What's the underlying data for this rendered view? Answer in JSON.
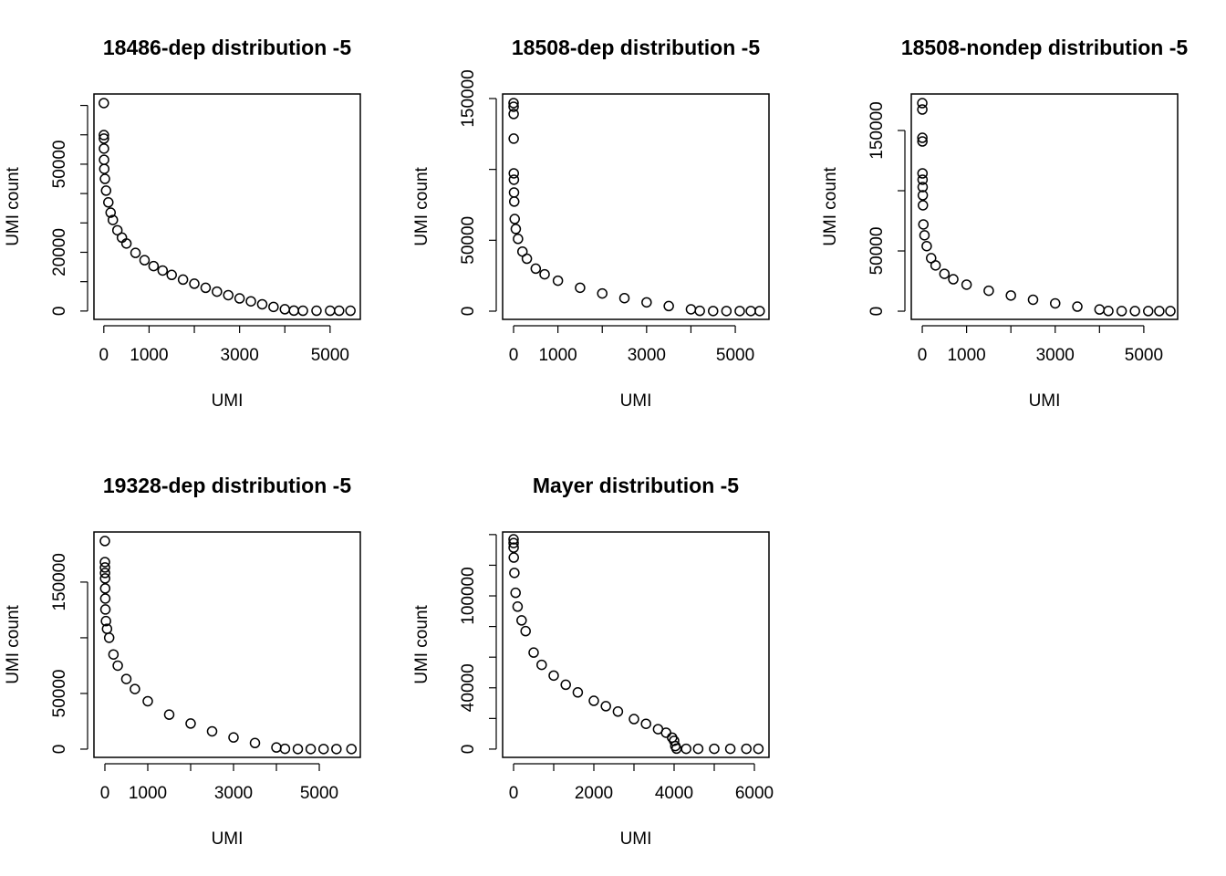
{
  "chart_data": [
    {
      "type": "scatter",
      "title": "18486-dep distribution -5",
      "x_label": "UMI",
      "y_label": "UMI count",
      "x": [
        0,
        1,
        2,
        3,
        5,
        10,
        25,
        50,
        100,
        150,
        200,
        300,
        400,
        500,
        700,
        900,
        1100,
        1300,
        1500,
        1750,
        2000,
        2250,
        2500,
        2750,
        3000,
        3250,
        3500,
        3750,
        4000,
        4200,
        4400,
        4700,
        5000,
        5200,
        5450
      ],
      "values": [
        70800,
        59900,
        58700,
        55300,
        51500,
        48400,
        45000,
        41000,
        37000,
        33500,
        31000,
        27500,
        25000,
        23000,
        19800,
        17300,
        15300,
        13800,
        12300,
        10700,
        9300,
        7900,
        6600,
        5400,
        4300,
        3300,
        2300,
        1400,
        600,
        150,
        100,
        100,
        100,
        100,
        100
      ],
      "xlim": [
        -218,
        5668
      ],
      "ylim": [
        -2840,
        73900
      ],
      "xticks": [
        0,
        1000,
        2000,
        3000,
        4000,
        5000
      ],
      "yticks": [
        0,
        10000,
        20000,
        30000,
        40000,
        50000,
        60000,
        70000
      ],
      "color": "#000000"
    },
    {
      "type": "scatter",
      "title": "18508-dep distribution -5",
      "x_label": "UMI",
      "y_label": "UMI count",
      "x": [
        0,
        1,
        2,
        3,
        5,
        8,
        10,
        15,
        25,
        50,
        100,
        200,
        300,
        500,
        700,
        1000,
        1500,
        2000,
        2500,
        3000,
        3500,
        4000,
        4200,
        4500,
        4800,
        5100,
        5350,
        5550
      ],
      "values": [
        146800,
        144200,
        139100,
        121700,
        97200,
        92700,
        83700,
        77300,
        65000,
        58000,
        51000,
        42000,
        37000,
        30000,
        26000,
        21500,
        16500,
        12500,
        9200,
        6200,
        3600,
        1300,
        200,
        100,
        100,
        100,
        100,
        100
      ],
      "xlim": [
        -247,
        5760
      ],
      "ylim": [
        -5800,
        153200
      ],
      "xticks": [
        0,
        1000,
        2000,
        3000,
        4000,
        5000
      ],
      "yticks": [
        0,
        50000,
        100000,
        150000
      ],
      "color": "#000000"
    },
    {
      "type": "scatter",
      "title": "18508-nondep distribution -5",
      "x_label": "UMI",
      "y_label": "UMI count",
      "x": [
        0,
        1,
        2,
        3,
        5,
        7,
        9,
        12,
        15,
        25,
        50,
        100,
        200,
        300,
        500,
        700,
        1000,
        1500,
        2000,
        2500,
        3000,
        3500,
        4000,
        4200,
        4500,
        4800,
        5100,
        5350,
        5600
      ],
      "values": [
        172700,
        167400,
        143900,
        140900,
        114400,
        109100,
        103000,
        96200,
        87900,
        72000,
        63000,
        54000,
        44000,
        38000,
        31000,
        26500,
        22000,
        17000,
        13000,
        9500,
        6500,
        3800,
        1400,
        200,
        100,
        100,
        100,
        100,
        100
      ],
      "xlim": [
        -248,
        5764
      ],
      "ylim": [
        -6800,
        180300
      ],
      "xticks": [
        0,
        1000,
        2000,
        3000,
        4000,
        5000
      ],
      "yticks": [
        0,
        50000,
        100000,
        150000
      ],
      "color": "#000000"
    },
    {
      "type": "scatter",
      "title": "19328-dep distribution -5",
      "x_label": "UMI",
      "y_label": "UMI count",
      "x": [
        0,
        1,
        2,
        3,
        5,
        7,
        9,
        12,
        25,
        50,
        100,
        200,
        300,
        500,
        700,
        1000,
        1500,
        2000,
        2500,
        3000,
        3500,
        4000,
        4200,
        4500,
        4800,
        5100,
        5400,
        5750
      ],
      "values": [
        186900,
        168000,
        163100,
        158200,
        153300,
        144300,
        135200,
        125400,
        115000,
        108000,
        100000,
        85000,
        75000,
        63000,
        54000,
        43000,
        31000,
        23000,
        16000,
        10500,
        5500,
        1500,
        300,
        100,
        100,
        100,
        100,
        100
      ],
      "xlim": [
        -255,
        5957
      ],
      "ylim": [
        -7400,
        195000
      ],
      "xticks": [
        0,
        1000,
        2000,
        3000,
        4000,
        5000
      ],
      "yticks": [
        0,
        50000,
        100000,
        150000
      ],
      "color": "#000000"
    },
    {
      "type": "scatter",
      "title": "Mayer distribution -5",
      "x_label": "UMI",
      "y_label": "UMI count",
      "x": [
        0,
        1,
        2,
        5,
        20,
        50,
        100,
        200,
        300,
        500,
        700,
        1000,
        1300,
        1600,
        2000,
        2300,
        2600,
        3000,
        3300,
        3600,
        3800,
        3950,
        4000,
        4030,
        4060,
        4300,
        4600,
        5000,
        5400,
        5800,
        6100
      ],
      "values": [
        136900,
        134500,
        131500,
        125000,
        115000,
        102000,
        93000,
        84000,
        77000,
        63000,
        55000,
        48000,
        42000,
        37000,
        31500,
        28000,
        24500,
        19600,
        16500,
        13000,
        10700,
        7500,
        5400,
        2000,
        300,
        200,
        200,
        200,
        200,
        200,
        200
      ],
      "xlim": [
        -273,
        6364
      ],
      "ylim": [
        -5400,
        141700
      ],
      "xticks": [
        0,
        1000,
        2000,
        3000,
        4000,
        5000,
        6000
      ],
      "yticks": [
        0,
        20000,
        40000,
        60000,
        80000,
        100000,
        120000,
        140000
      ],
      "color": "#000000"
    }
  ]
}
